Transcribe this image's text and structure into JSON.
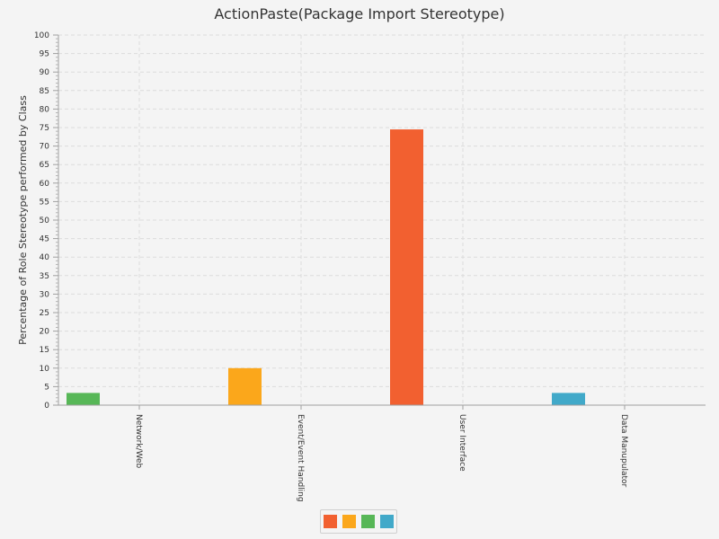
{
  "chart_data": {
    "type": "bar",
    "title": "ActionPaste(Package Import Stereotype)",
    "xlabel": "",
    "ylabel": "Percentage of Role Stereotype performed by Class",
    "ylim": [
      0,
      100
    ],
    "yticks": [
      0,
      5,
      10,
      15,
      20,
      25,
      30,
      35,
      40,
      45,
      50,
      55,
      60,
      65,
      70,
      75,
      80,
      85,
      90,
      95,
      100
    ],
    "categories": [
      "Network/Web",
      "Event/Event Handling",
      "User Interface",
      "Data Manupulator"
    ],
    "series": [
      {
        "color": "#f26030",
        "values": [
          0,
          0,
          74.5,
          0
        ]
      },
      {
        "color": "#fba71b",
        "values": [
          0,
          10,
          0,
          0
        ]
      },
      {
        "color": "#57b757",
        "values": [
          3.3,
          0,
          0,
          0
        ]
      },
      {
        "color": "#41a9c9",
        "values": [
          0,
          0,
          0,
          3.3
        ]
      }
    ],
    "grid": true,
    "legend": "bottom"
  }
}
